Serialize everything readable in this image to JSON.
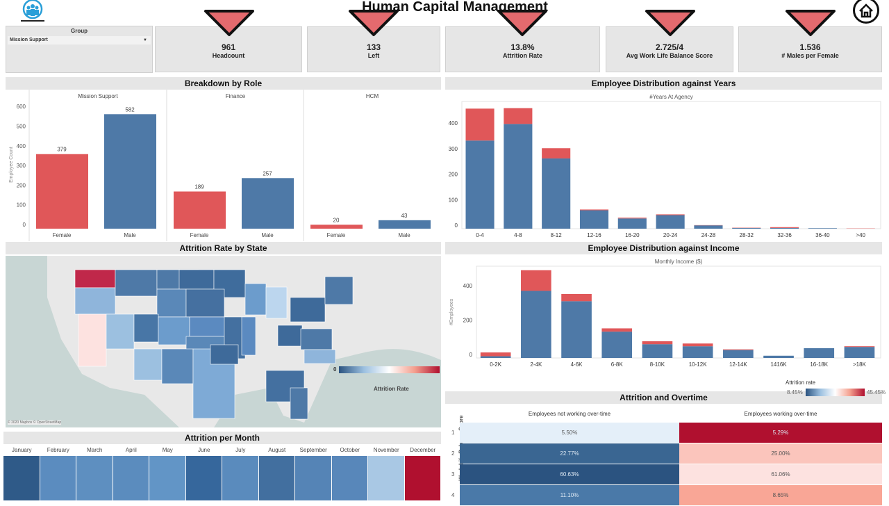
{
  "header": {
    "title": "Human Capital Management",
    "logo_icon": "people-logo-icon",
    "home_icon": "home-icon"
  },
  "filter": {
    "label": "Group",
    "value": "Mission Support"
  },
  "kpis": [
    {
      "value": "961",
      "label": "Headcount",
      "trend": "down"
    },
    {
      "value": "133",
      "label": "Left",
      "trend": "down"
    },
    {
      "value": "13.8%",
      "label": "Attrition Rate",
      "trend": "down"
    },
    {
      "value": "2.725/4",
      "label": "Avg Work Life Balance Score",
      "trend": "down"
    },
    {
      "value": "1.536",
      "label": "# Males per Female",
      "trend": "down"
    }
  ],
  "colors": {
    "female": "#e05759",
    "male": "#4e79a7",
    "attrited": "#e05759",
    "retained": "#4e79a7",
    "trend": "#e46a6e"
  },
  "sections": {
    "role": "Breakdown by Role",
    "years": "Employee Distribution against Years",
    "state": "Attrition Rate by State",
    "income": "Employee Distribution against Income",
    "overtime": "Attrition and Overtime",
    "month": "Attrition per Month"
  },
  "chart_data": [
    {
      "type": "bar",
      "title": "Breakdown by Role",
      "ylabel": "Employee Count",
      "ylim": [
        0,
        600
      ],
      "yticks": [
        0,
        100,
        200,
        300,
        400,
        500,
        600
      ],
      "facets": [
        {
          "name": "Mission Support",
          "categories": [
            "Female",
            "Male"
          ],
          "values": [
            379,
            582
          ]
        },
        {
          "name": "Finance",
          "categories": [
            "Female",
            "Male"
          ],
          "values": [
            189,
            257
          ]
        },
        {
          "name": "HCM",
          "categories": [
            "Female",
            "Male"
          ],
          "values": [
            20,
            43
          ]
        }
      ]
    },
    {
      "type": "bar",
      "stacked": true,
      "title": "Employee Distribution against Years",
      "xlabel": "#Years At Agency",
      "ylim": [
        0,
        480
      ],
      "yticks": [
        0,
        100,
        200,
        300,
        400
      ],
      "categories": [
        "0-4",
        "4-8",
        "8-12",
        "12-16",
        "16-20",
        "20-24",
        "24-28",
        "28-32",
        "32-36",
        "36-40",
        ">40"
      ],
      "series": [
        {
          "values": [
            345,
            410,
            275,
            72,
            40,
            53,
            13,
            3,
            3,
            2,
            0
          ]
        },
        {
          "values": [
            125,
            62,
            40,
            3,
            3,
            3,
            1,
            1,
            3,
            0,
            1
          ]
        }
      ]
    },
    {
      "type": "bar",
      "stacked": true,
      "title": "Employee Distribution against Income",
      "xlabel": "Monthly Income ($)",
      "ylabel": "#Employees",
      "ylim": [
        0,
        540
      ],
      "yticks": [
        0,
        200,
        400
      ],
      "categories": [
        "0-2K",
        "2-4K",
        "4-6K",
        "6-8K",
        "8-10K",
        "10-12K",
        "12-14K",
        "1416K",
        "16-18K",
        ">18K"
      ],
      "series": [
        {
          "values": [
            10,
            390,
            330,
            153,
            80,
            68,
            46,
            13,
            57,
            64
          ]
        },
        {
          "values": [
            22,
            120,
            42,
            19,
            17,
            16,
            4,
            0,
            0,
            4
          ]
        }
      ]
    },
    {
      "type": "heatmap",
      "title": "Attrition and Overtime",
      "ylabel": "Work-Life Balance Score",
      "columns": [
        "Employees not working over-time",
        "Employees working over-time"
      ],
      "rows": [
        "1",
        "2",
        "3",
        "4"
      ],
      "values": [
        [
          "5.50%",
          "5.29%"
        ],
        [
          "22.77%",
          "25.00%"
        ],
        [
          "60.63%",
          "61.06%"
        ],
        [
          "11.10%",
          "8.65%"
        ]
      ],
      "colors": [
        [
          "#e4eff9",
          "#b0102f"
        ],
        [
          "#3a6692",
          "#fbc5bc"
        ],
        [
          "#2b5380",
          "#fde2e0"
        ],
        [
          "#4a79a8",
          "#f9a696"
        ]
      ],
      "legend": {
        "title": "Attrition rate",
        "min": "8.45%",
        "max": "45.45%"
      }
    },
    {
      "type": "heatmap",
      "title": "Attrition per Month",
      "columns": [
        "January",
        "February",
        "March",
        "April",
        "May",
        "June",
        "July",
        "August",
        "September",
        "October",
        "November",
        "December"
      ],
      "colors": [
        "#2f5a88",
        "#5b8cbf",
        "#5e8fc0",
        "#5b8cbe",
        "#6295c6",
        "#36679c",
        "#5a8bbd",
        "#426f9f",
        "#5584b6",
        "#5887ba",
        "#a9c8e4",
        "#b0102f"
      ]
    }
  ],
  "map": {
    "legend_title": "Attrition Rate",
    "legend_min": "0",
    "legend_max": "40",
    "credit": "© 2020 Mapbox © OpenStreetMap"
  }
}
